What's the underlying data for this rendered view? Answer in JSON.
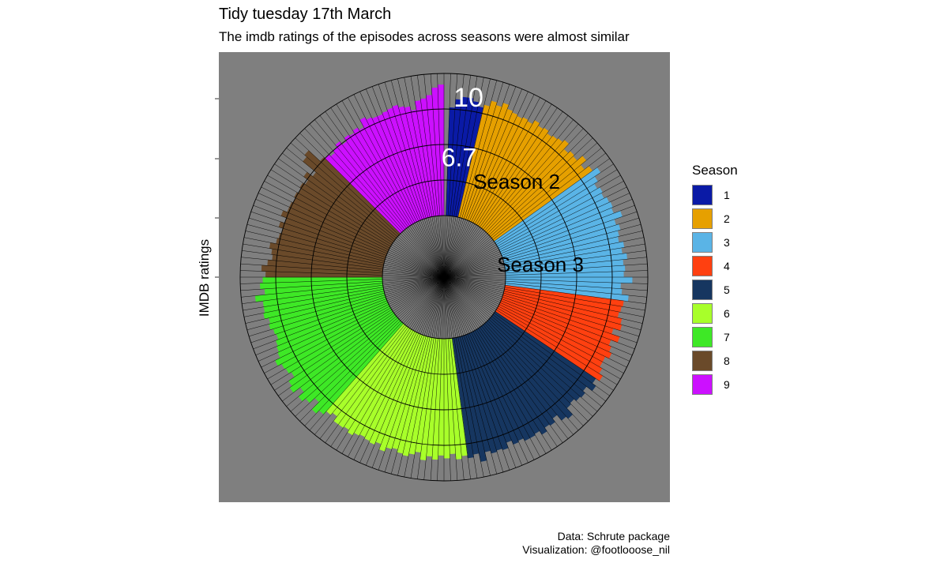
{
  "chart_data": {
    "type": "bar",
    "polar": true,
    "title": "Tidy tuesday 17th March",
    "subtitle": "The imdb ratings of the episodes across seasons were almost similar",
    "ylabel": "IMDB ratings",
    "ylim": [
      0,
      10
    ],
    "legend_title": "Season",
    "legend_position": "right",
    "annotations": [
      {
        "text": "10",
        "value": 10
      },
      {
        "text": "6.7",
        "value": 6.7
      },
      {
        "text": "Season 2",
        "season": 2
      },
      {
        "text": "Season 3",
        "season": 3
      }
    ],
    "seasons": [
      {
        "season": "1",
        "color": "#0a1aa6",
        "ratings": [
          7.6,
          8.2,
          8.4,
          8.4,
          8.2,
          7.9
        ]
      },
      {
        "season": "2",
        "color": "#e6a000",
        "ratings": [
          8.1,
          8.5,
          8.3,
          8.6,
          8.3,
          8.2,
          8.1,
          8.2,
          8.1,
          8.4,
          8.2,
          8.3,
          8.1,
          8.2,
          8.3,
          8.5,
          8.0,
          8.2,
          8.1,
          8.6,
          8.1,
          8.5
        ]
      },
      {
        "season": "3",
        "color": "#5ab4e6",
        "ratings": [
          8.9,
          8.4,
          8.1,
          8.3,
          8.2,
          8.4,
          8.5,
          8.4,
          8.9,
          8.3,
          8.5,
          8.3,
          8.2,
          8.5,
          8.3,
          8.6,
          8.3,
          8.4,
          8.3,
          8.9,
          8.1,
          8.2,
          8.7
        ]
      },
      {
        "season": "4",
        "color": "#ff4010",
        "ratings": [
          8.4,
          8.3,
          8.2,
          8.5,
          8.6,
          8.1,
          8.7,
          8.2,
          8.4,
          8.6,
          8.3,
          8.3,
          8.5,
          8.8
        ]
      },
      {
        "season": "5",
        "color": "#163660",
        "ratings": [
          8.5,
          8.8,
          8.3,
          8.5,
          8.4,
          8.2,
          8.3,
          8.9,
          8.7,
          8.2,
          8.5,
          8.4,
          8.7,
          8.4,
          8.5,
          8.5,
          8.3,
          8.4,
          8.1,
          8.5,
          8.4,
          8.5,
          8.3,
          8.9,
          8.3,
          8.5
        ]
      },
      {
        "season": "6",
        "color": "#a8ff2a",
        "ratings": [
          8.3,
          8.5,
          8.1,
          8.4,
          8.2,
          8.5,
          8.3,
          8.6,
          8.1,
          8.3,
          8.5,
          8.4,
          8.2,
          8.3,
          8.6,
          8.2,
          8.4,
          8.3,
          8.2,
          8.3,
          8.5,
          8.3,
          8.4,
          8.4,
          8.0,
          8.2
        ]
      },
      {
        "season": "7",
        "color": "#3ee826",
        "ratings": [
          8.5,
          8.8,
          8.1,
          8.6,
          8.9,
          8.4,
          9.0,
          8.8,
          8.3,
          8.5,
          8.6,
          8.9,
          8.5,
          8.4,
          8.3,
          8.1,
          8.2,
          8.4,
          8.3,
          8.6,
          8.5,
          8.5,
          9.0,
          8.3,
          8.6,
          8.4
        ]
      },
      {
        "season": "8",
        "color": "#6a4a2a",
        "ratings": [
          8.2,
          8.5,
          8.1,
          7.8,
          7.9,
          8.1,
          7.7,
          7.6,
          7.5,
          7.8,
          7.5,
          7.9,
          7.6,
          7.6,
          7.5,
          7.6,
          7.5,
          7.6,
          7.4,
          7.8,
          7.3,
          8.5,
          8.7,
          7.6
        ]
      },
      {
        "season": "9",
        "color": "#cc10ff",
        "ratings": [
          7.5,
          7.3,
          7.5,
          7.7,
          7.4,
          7.7,
          7.6,
          7.8,
          7.6,
          8.2,
          8.0,
          7.9,
          7.9,
          8.0,
          8.1,
          8.2,
          8.0,
          7.9,
          7.6,
          8.2,
          8.3,
          8.5,
          9.0,
          9.2
        ]
      }
    ],
    "caption_lines": [
      "Data: Schrute package",
      "Visualization: @footlooose_nil"
    ]
  }
}
